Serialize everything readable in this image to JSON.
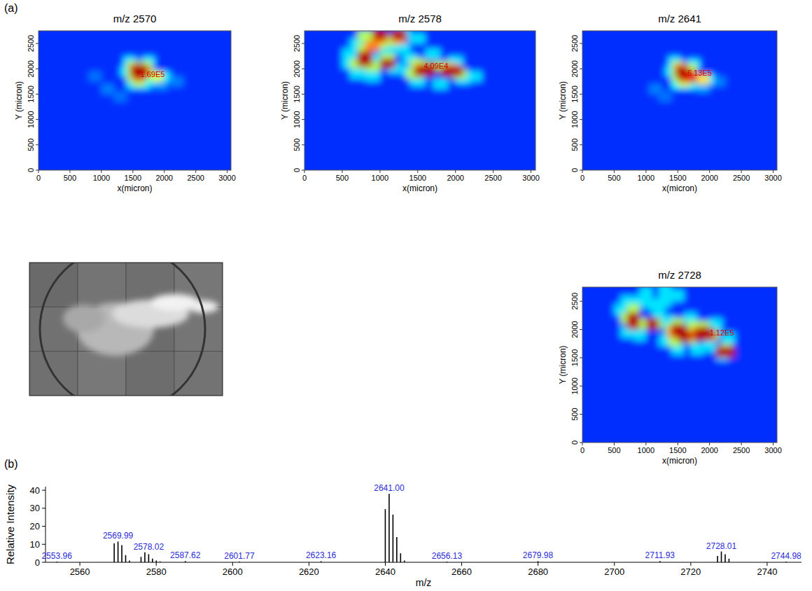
{
  "chart_data": [
    {
      "type": "heatmap",
      "panel_label": "(a)",
      "title": "m/z 2570",
      "x_label": "x(micron)",
      "y_label": "Y (micron)",
      "xlim": [
        0,
        3060
      ],
      "ylim": [
        0,
        2750
      ],
      "xticks": [
        0,
        500,
        1000,
        1500,
        2000,
        2500,
        3000
      ],
      "yticks": [
        0,
        500,
        1000,
        1500,
        2000,
        2500
      ],
      "background": 0.17,
      "cell_width": 200,
      "cells": [
        [
          1100,
          1600,
          0.25
        ],
        [
          900,
          1850,
          0.24
        ],
        [
          1300,
          1450,
          0.24
        ],
        [
          2200,
          1750,
          0.25
        ],
        [
          1950,
          1700,
          0.28
        ],
        [
          1400,
          1950,
          0.35
        ],
        [
          1450,
          2150,
          0.35
        ],
        [
          1750,
          2150,
          0.35
        ],
        [
          1500,
          1700,
          0.35
        ],
        [
          1700,
          1700,
          0.35
        ],
        [
          2000,
          1850,
          0.35
        ],
        [
          1800,
          1800,
          0.38
        ],
        [
          1500,
          1850,
          0.55
        ],
        [
          1700,
          2050,
          0.55
        ],
        [
          1500,
          2050,
          0.55
        ],
        [
          1600,
          1750,
          0.55
        ],
        [
          1880,
          1850,
          0.6
        ],
        [
          1750,
          1900,
          0.55
        ],
        [
          1550,
          2000,
          0.75
        ],
        [
          1680,
          1950,
          0.75
        ],
        [
          1600,
          1850,
          0.75
        ],
        [
          1560,
          1950,
          0.95
        ],
        [
          1640,
          1950,
          0.95
        ],
        [
          1600,
          1900,
          0.95
        ],
        [
          1600,
          2000,
          0.95
        ]
      ],
      "annotations": [
        {
          "x": 1620,
          "y": 1840,
          "text": "1.69E5"
        }
      ]
    },
    {
      "type": "heatmap",
      "title": "m/z 2578",
      "x_label": "x(micron)",
      "y_label": "Y (micron)",
      "xlim": [
        0,
        3060
      ],
      "ylim": [
        0,
        2750
      ],
      "xticks": [
        0,
        500,
        1000,
        1500,
        2000,
        2500,
        3000
      ],
      "yticks": [
        0,
        500,
        1000,
        1500,
        2000,
        2500
      ],
      "background": 0.17,
      "cell_width": 200,
      "cells": [
        [
          600,
          2300,
          0.35
        ],
        [
          700,
          2500,
          0.35
        ],
        [
          900,
          2500,
          0.35
        ],
        [
          1100,
          2400,
          0.35
        ],
        [
          1300,
          2400,
          0.35
        ],
        [
          1400,
          2200,
          0.35
        ],
        [
          1200,
          2000,
          0.35
        ],
        [
          900,
          1850,
          0.35
        ],
        [
          700,
          1900,
          0.35
        ],
        [
          1300,
          2700,
          0.35
        ],
        [
          1500,
          2600,
          0.35
        ],
        [
          1700,
          2300,
          0.35
        ],
        [
          2100,
          1800,
          0.35
        ],
        [
          2250,
          1850,
          0.35
        ],
        [
          1800,
          1700,
          0.35
        ],
        [
          1500,
          1750,
          0.35
        ],
        [
          1000,
          2200,
          0.35
        ],
        [
          600,
          2100,
          0.35
        ],
        [
          2000,
          2150,
          0.35
        ],
        [
          1400,
          1950,
          0.35
        ],
        [
          800,
          2400,
          0.55
        ],
        [
          1000,
          2500,
          0.55
        ],
        [
          1150,
          2550,
          0.55
        ],
        [
          700,
          2100,
          0.55
        ],
        [
          900,
          2050,
          0.55
        ],
        [
          1100,
          2200,
          0.55
        ],
        [
          1500,
          2100,
          0.55
        ],
        [
          1700,
          2050,
          0.55
        ],
        [
          1850,
          2050,
          0.55
        ],
        [
          2050,
          1900,
          0.55
        ],
        [
          1450,
          1900,
          0.55
        ],
        [
          800,
          2650,
          0.55
        ],
        [
          1000,
          2600,
          0.75
        ],
        [
          1250,
          2600,
          0.75
        ],
        [
          800,
          2150,
          0.75
        ],
        [
          1550,
          2000,
          0.75
        ],
        [
          1950,
          2000,
          0.75
        ],
        [
          900,
          2450,
          0.75
        ],
        [
          1000,
          2680,
          0.95
        ],
        [
          1250,
          2680,
          0.95
        ],
        [
          800,
          2250,
          0.95
        ],
        [
          800,
          2150,
          0.95
        ],
        [
          1100,
          2100,
          0.95
        ],
        [
          1600,
          1950,
          0.95
        ],
        [
          1550,
          1950,
          0.95
        ],
        [
          1650,
          2000,
          0.95
        ],
        [
          1950,
          1950,
          0.95
        ],
        [
          2000,
          1950,
          0.95
        ],
        [
          1900,
          1950,
          0.95
        ]
      ],
      "annotations": [
        {
          "x": 1580,
          "y": 2010,
          "text": "4.09E4"
        }
      ]
    },
    {
      "type": "heatmap",
      "title": "m/z 2641",
      "x_label": "x(micron)",
      "y_label": "Y (micron)",
      "xlim": [
        0,
        3060
      ],
      "ylim": [
        0,
        2750
      ],
      "xticks": [
        0,
        500,
        1000,
        1500,
        2000,
        2500,
        3000
      ],
      "yticks": [
        0,
        500,
        1000,
        1500,
        2000,
        2500
      ],
      "background": 0.17,
      "cell_width": 200,
      "cells": [
        [
          1150,
          1600,
          0.25
        ],
        [
          1300,
          1450,
          0.24
        ],
        [
          2150,
          1750,
          0.25
        ],
        [
          1900,
          1650,
          0.3
        ],
        [
          1400,
          1950,
          0.35
        ],
        [
          1450,
          2150,
          0.35
        ],
        [
          1750,
          2100,
          0.35
        ],
        [
          1500,
          1700,
          0.38
        ],
        [
          1700,
          1700,
          0.38
        ],
        [
          1980,
          1800,
          0.35
        ],
        [
          1500,
          1850,
          0.55
        ],
        [
          1700,
          2000,
          0.55
        ],
        [
          1500,
          2050,
          0.55
        ],
        [
          1600,
          1750,
          0.6
        ],
        [
          1900,
          1800,
          0.65
        ],
        [
          1550,
          2000,
          0.75
        ],
        [
          1700,
          1850,
          0.8
        ],
        [
          1560,
          1950,
          0.95
        ],
        [
          1620,
          1900,
          0.95
        ],
        [
          1600,
          1850,
          0.95
        ],
        [
          1700,
          1830,
          0.9
        ]
      ],
      "annotations": [
        {
          "x": 1650,
          "y": 1860,
          "text": "6.13E5"
        }
      ]
    },
    {
      "type": "heatmap",
      "title": "m/z 2728",
      "x_label": "x(micron)",
      "y_label": "Y (micron)",
      "xlim": [
        0,
        3060
      ],
      "ylim": [
        0,
        2750
      ],
      "xticks": [
        0,
        500,
        1000,
        1500,
        2000,
        2500,
        3000
      ],
      "yticks": [
        0,
        500,
        1000,
        1500,
        2000,
        2500
      ],
      "background": 0.17,
      "cell_width": 200,
      "cells": [
        [
          600,
          2350,
          0.35
        ],
        [
          700,
          2500,
          0.35
        ],
        [
          900,
          2500,
          0.35
        ],
        [
          1100,
          2450,
          0.35
        ],
        [
          1300,
          2500,
          0.35
        ],
        [
          1500,
          2600,
          0.35
        ],
        [
          1200,
          2300,
          0.35
        ],
        [
          1350,
          2150,
          0.35
        ],
        [
          700,
          1950,
          0.35
        ],
        [
          900,
          1900,
          0.35
        ],
        [
          1300,
          1800,
          0.35
        ],
        [
          1500,
          1650,
          0.35
        ],
        [
          1800,
          1650,
          0.35
        ],
        [
          2000,
          1700,
          0.35
        ],
        [
          2300,
          1850,
          0.35
        ],
        [
          2100,
          2100,
          0.35
        ],
        [
          1700,
          2200,
          0.35
        ],
        [
          1000,
          2650,
          0.35
        ],
        [
          1300,
          2700,
          0.35
        ],
        [
          2200,
          1550,
          0.35
        ],
        [
          700,
          2200,
          0.55
        ],
        [
          800,
          2350,
          0.55
        ],
        [
          1000,
          2100,
          0.55
        ],
        [
          1150,
          2100,
          0.55
        ],
        [
          1450,
          1800,
          0.55
        ],
        [
          1500,
          2100,
          0.55
        ],
        [
          1700,
          1850,
          0.55
        ],
        [
          1750,
          2050,
          0.55
        ],
        [
          2050,
          1900,
          0.55
        ],
        [
          1900,
          2050,
          0.55
        ],
        [
          2250,
          1650,
          0.55
        ],
        [
          1400,
          2000,
          0.55
        ],
        [
          800,
          2100,
          0.75
        ],
        [
          1450,
          1950,
          0.75
        ],
        [
          1650,
          1900,
          0.75
        ],
        [
          1850,
          1950,
          0.75
        ],
        [
          2000,
          1900,
          0.75
        ],
        [
          800,
          2200,
          0.95
        ],
        [
          800,
          2120,
          0.95
        ],
        [
          1100,
          2100,
          0.95
        ],
        [
          1550,
          1950,
          0.95
        ],
        [
          1600,
          1880,
          0.95
        ],
        [
          1500,
          2000,
          0.95
        ],
        [
          1900,
          1950,
          0.95
        ],
        [
          1980,
          1920,
          0.95
        ],
        [
          1850,
          1900,
          0.95
        ],
        [
          2200,
          1600,
          0.95
        ],
        [
          2300,
          1600,
          0.95
        ]
      ],
      "annotations": [
        {
          "x": 2000,
          "y": 1900,
          "text": "1.12E5"
        }
      ]
    },
    {
      "type": "stem",
      "panel_label": "(b)",
      "x_label": "m/z",
      "y_label": "Relative Intensity",
      "xlim": [
        2551,
        2749
      ],
      "ylim": [
        0,
        42
      ],
      "xticks": [
        2560,
        2580,
        2600,
        2620,
        2640,
        2660,
        2680,
        2700,
        2720,
        2740
      ],
      "yticks": [
        0,
        10,
        20,
        30,
        40
      ],
      "color": "#000000",
      "x": [
        2553.96,
        2568.99,
        2569.99,
        2570.99,
        2571.99,
        2572.99,
        2576.02,
        2577.02,
        2578.02,
        2579.02,
        2580.02,
        2581.02,
        2587.62,
        2601.77,
        2623.16,
        2639.99,
        2641.0,
        2642.0,
        2643.0,
        2644.0,
        2645.0,
        2656.13,
        2679.98,
        2711.93,
        2727.01,
        2728.01,
        2729.01,
        2730.01,
        2744.98
      ],
      "values": [
        0.4,
        10.5,
        11.5,
        9.5,
        4,
        1,
        3,
        5.5,
        4.5,
        2,
        1,
        0.5,
        0.7,
        0.4,
        0.6,
        29.5,
        38,
        26.5,
        14,
        5,
        1,
        0.4,
        0.6,
        0.7,
        3.5,
        6,
        4.5,
        2,
        0.4
      ],
      "peak_labels": [
        {
          "value": 2553.96,
          "label": "2553.96"
        },
        {
          "value": 2569.99,
          "label": "2569.99"
        },
        {
          "value": 2578.02,
          "label": "2578.02"
        },
        {
          "value": 2587.62,
          "label": "2587.62"
        },
        {
          "value": 2601.77,
          "label": "2601.77"
        },
        {
          "value": 2623.16,
          "label": "2623.16"
        },
        {
          "value": 2641,
          "label": "2641.00"
        },
        {
          "value": 2656.13,
          "label": "2656.13"
        },
        {
          "value": 2679.98,
          "label": "2679.98"
        },
        {
          "value": 2711.93,
          "label": "2711.93"
        },
        {
          "value": 2728.01,
          "label": "2728.01"
        },
        {
          "value": 2744.98,
          "label": "2744.98"
        }
      ]
    }
  ]
}
